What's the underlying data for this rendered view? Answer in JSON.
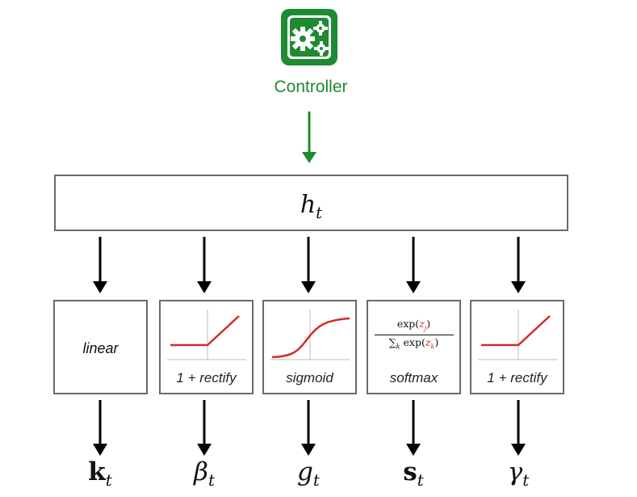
{
  "controller": {
    "label": "Controller",
    "icon": "gears-icon",
    "color": "#1e8a32"
  },
  "hidden_state": {
    "symbol": "h",
    "subscript": "t"
  },
  "functions": [
    {
      "caption": "",
      "center_text": "linear"
    },
    {
      "caption": "1 + rectify"
    },
    {
      "caption": "sigmoid"
    },
    {
      "caption": "softmax",
      "formula": {
        "numerator_fn": "exp(",
        "numerator_var": "z",
        "numerator_sub": "j",
        "close": ")",
        "denominator_sum": "∑",
        "denominator_sum_sub": "k",
        "denominator_fn": " exp(",
        "denominator_var": "z",
        "denominator_sub": "k"
      }
    },
    {
      "caption": "1 + rectify"
    }
  ],
  "outputs": [
    {
      "symbol": "k",
      "subscript": "t"
    },
    {
      "symbol": "β",
      "subscript": "t"
    },
    {
      "symbol": "g",
      "subscript": "t"
    },
    {
      "symbol": "s",
      "subscript": "t"
    },
    {
      "symbol": "γ",
      "subscript": "t"
    }
  ],
  "colors": {
    "curve": "#d42a2a",
    "arrow_controller": "#1e8a32",
    "arrow": "#000000",
    "border": "#6a6a6a"
  }
}
